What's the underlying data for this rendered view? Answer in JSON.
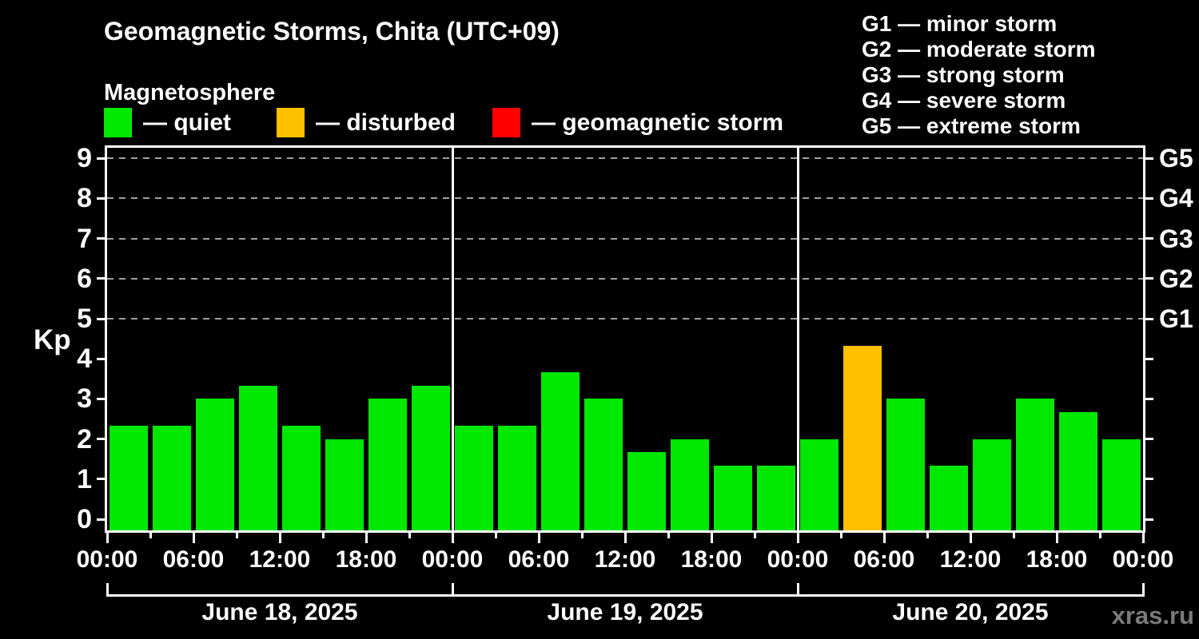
{
  "watermark": "xras.ru",
  "chart_data": {
    "type": "bar",
    "title": "Geomagnetic Storms, Chita (UTC+09)",
    "subtitle": "Magnetosphere",
    "ylabel": "Kp",
    "ylim": [
      0,
      9.4
    ],
    "yticks": [
      0,
      1,
      2,
      3,
      4,
      5,
      6,
      7,
      8,
      9
    ],
    "grid_values": [
      5,
      6,
      7,
      8,
      9
    ],
    "grid_style": "dashed",
    "legend_position": "top-left",
    "bar_interval_hours": 3,
    "x_time_labels": [
      "00:00",
      "06:00",
      "12:00",
      "18:00"
    ],
    "condition_legend": [
      {
        "name": "quiet",
        "label": "— quiet",
        "color": "#00e800"
      },
      {
        "name": "disturbed",
        "label": "— disturbed",
        "color": "#ffc000"
      },
      {
        "name": "storm",
        "label": "— geomagnetic storm",
        "color": "#ff0000"
      }
    ],
    "storm_scale": [
      {
        "code": "G1",
        "kp": 5,
        "label": "G1 — minor storm"
      },
      {
        "code": "G2",
        "kp": 6,
        "label": "G2 — moderate storm"
      },
      {
        "code": "G3",
        "kp": 7,
        "label": "G3 — strong storm"
      },
      {
        "code": "G4",
        "kp": 8,
        "label": "G4 — severe storm"
      },
      {
        "code": "G5",
        "kp": 9,
        "label": "G5 — extreme storm"
      }
    ],
    "thresholds": {
      "disturbed_kp": 4,
      "storm_kp": 5
    },
    "days": [
      {
        "date": "June 18, 2025",
        "values": [
          2.33,
          2.33,
          3.0,
          3.33,
          2.33,
          2.0,
          3.0,
          3.33
        ]
      },
      {
        "date": "June 19, 2025",
        "values": [
          2.33,
          2.33,
          3.67,
          3.0,
          1.67,
          2.0,
          1.33,
          1.33
        ]
      },
      {
        "date": "June 20, 2025",
        "values": [
          2.0,
          4.33,
          3.0,
          1.33,
          2.0,
          3.0,
          2.67,
          2.0
        ]
      }
    ],
    "colors": {
      "quiet": "#00e800",
      "disturbed": "#ffc000",
      "storm": "#ff0000",
      "grid": "#a0a0a0",
      "axis": "#ffffff",
      "background": "#000000",
      "watermark": "#7a7a7a"
    }
  }
}
